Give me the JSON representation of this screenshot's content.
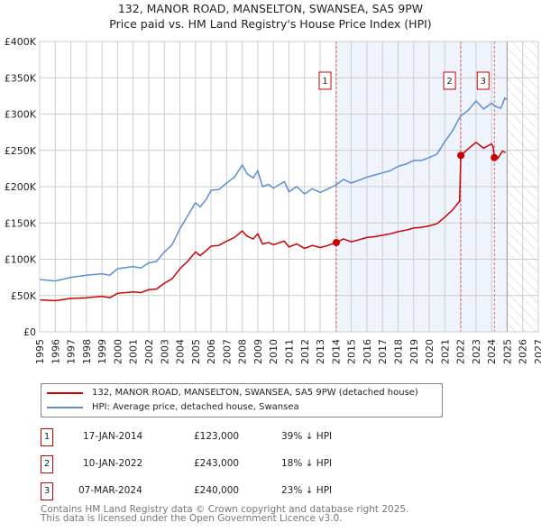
{
  "chart_data": {
    "type": "line",
    "title": "132, MANOR ROAD, MANSELTON, SWANSEA, SA5 9PW",
    "subtitle": "Price paid vs. HM Land Registry's House Price Index (HPI)",
    "xlim": [
      1995,
      2027
    ],
    "ylim": [
      0,
      400000
    ],
    "y_ticks": [
      {
        "v": 0,
        "label": "£0"
      },
      {
        "v": 50000,
        "label": "£50K"
      },
      {
        "v": 100000,
        "label": "£100K"
      },
      {
        "v": 150000,
        "label": "£150K"
      },
      {
        "v": 200000,
        "label": "£200K"
      },
      {
        "v": 250000,
        "label": "£250K"
      },
      {
        "v": 300000,
        "label": "£300K"
      },
      {
        "v": 350000,
        "label": "£350K"
      },
      {
        "v": 400000,
        "label": "£400K"
      }
    ],
    "x_ticks": [
      "1995",
      "1996",
      "1997",
      "1998",
      "1999",
      "2000",
      "2001",
      "2002",
      "2003",
      "2004",
      "2005",
      "2006",
      "2007",
      "2008",
      "2009",
      "2010",
      "2011",
      "2012",
      "2013",
      "2014",
      "2015",
      "2016",
      "2017",
      "2018",
      "2019",
      "2020",
      "2021",
      "2022",
      "2023",
      "2024",
      "2025",
      "2026",
      "2027"
    ],
    "grid": true,
    "shaded_range": [
      2014.04,
      2025.0
    ],
    "hatched_range": [
      2025.0,
      2027
    ],
    "series": [
      {
        "name": "132, MANOR ROAD, MANSELTON, SWANSEA, SA5 9PW (detached house)",
        "color": "#cc0000",
        "x": [
          1995,
          1996,
          1997,
          1998,
          1999,
          1999.5,
          2000,
          2001,
          2001.5,
          2002,
          2002.5,
          2003,
          2003.5,
          2004,
          2004.5,
          2005,
          2005.3,
          2005.7,
          2006,
          2006.5,
          2007,
          2007.5,
          2008,
          2008.3,
          2008.7,
          2009,
          2009.3,
          2009.7,
          2010,
          2010.7,
          2011,
          2011.5,
          2012,
          2012.5,
          2013,
          2013.5,
          2014.04,
          2014.5,
          2015,
          2015.5,
          2016,
          2016.5,
          2017,
          2017.5,
          2018,
          2018.5,
          2019,
          2019.5,
          2020,
          2020.5,
          2021,
          2021.5,
          2021.95,
          2022.03,
          2022.5,
          2023,
          2023.5,
          2024,
          2024.1,
          2024.18,
          2024.4,
          2024.7,
          2024.9
        ],
        "y": [
          44000,
          43000,
          46000,
          47000,
          49000,
          47000,
          53000,
          55000,
          54000,
          58000,
          59000,
          67000,
          73000,
          87000,
          97000,
          110000,
          105000,
          112000,
          118000,
          119000,
          125000,
          130000,
          139000,
          132000,
          128000,
          135000,
          121000,
          123000,
          120000,
          125000,
          117000,
          121000,
          115000,
          119000,
          116000,
          119000,
          123000,
          128000,
          124000,
          127000,
          130000,
          131000,
          133000,
          135000,
          138000,
          140000,
          143000,
          144000,
          146000,
          149000,
          158000,
          168000,
          180000,
          243000,
          252000,
          261000,
          253000,
          259000,
          255000,
          240000,
          239000,
          249000,
          247000
        ]
      },
      {
        "name": "HPI: Average price, detached house, Swansea",
        "color": "#5b8fd4",
        "x": [
          1995,
          1996,
          1997,
          1998,
          1999,
          1999.5,
          2000,
          2001,
          2001.5,
          2002,
          2002.5,
          2003,
          2003.5,
          2004,
          2004.5,
          2005,
          2005.3,
          2005.7,
          2006,
          2006.5,
          2007,
          2007.5,
          2008,
          2008.3,
          2008.7,
          2009,
          2009.3,
          2009.7,
          2010,
          2010.7,
          2011,
          2011.5,
          2012,
          2012.5,
          2013,
          2013.5,
          2014,
          2014.5,
          2015,
          2015.5,
          2016,
          2016.5,
          2017,
          2017.5,
          2018,
          2018.5,
          2019,
          2019.5,
          2020,
          2020.5,
          2021,
          2021.5,
          2022,
          2022.5,
          2023,
          2023.5,
          2024,
          2024.3,
          2024.6,
          2024.85,
          2025
        ],
        "y": [
          72000,
          70000,
          75000,
          78000,
          80000,
          78000,
          87000,
          90000,
          88000,
          95000,
          97000,
          110000,
          120000,
          142000,
          160000,
          178000,
          172000,
          183000,
          195000,
          196000,
          205000,
          213000,
          230000,
          218000,
          212000,
          222000,
          200000,
          203000,
          198000,
          207000,
          193000,
          200000,
          190000,
          197000,
          192000,
          197000,
          202000,
          210000,
          205000,
          209000,
          213000,
          216000,
          219000,
          222000,
          228000,
          231000,
          236000,
          236000,
          240000,
          245000,
          262000,
          277000,
          297000,
          305000,
          318000,
          307000,
          315000,
          310000,
          308000,
          322000,
          320000
        ]
      }
    ],
    "annotations": [
      {
        "label": "1",
        "x": 2014.04,
        "y": 123000
      },
      {
        "label": "2",
        "x": 2022.03,
        "y": 243000
      },
      {
        "label": "3",
        "x": 2024.18,
        "y": 240000
      }
    ]
  },
  "legend": [
    {
      "label": "132, MANOR ROAD, MANSELTON, SWANSEA, SA5 9PW (detached house)",
      "color": "#cc0000"
    },
    {
      "label": "HPI: Average price, detached house, Swansea",
      "color": "#5b8fd4"
    }
  ],
  "transactions": [
    {
      "num": "1",
      "date": "17-JAN-2014",
      "price": "£123,000",
      "diff": "39% ↓ HPI"
    },
    {
      "num": "2",
      "date": "10-JAN-2022",
      "price": "£243,000",
      "diff": "18% ↓ HPI"
    },
    {
      "num": "3",
      "date": "07-MAR-2024",
      "price": "£240,000",
      "diff": "23% ↓ HPI"
    }
  ],
  "footer": [
    "Contains HM Land Registry data © Crown copyright and database right 2025.",
    "This data is licensed under the Open Government Licence v3.0."
  ]
}
